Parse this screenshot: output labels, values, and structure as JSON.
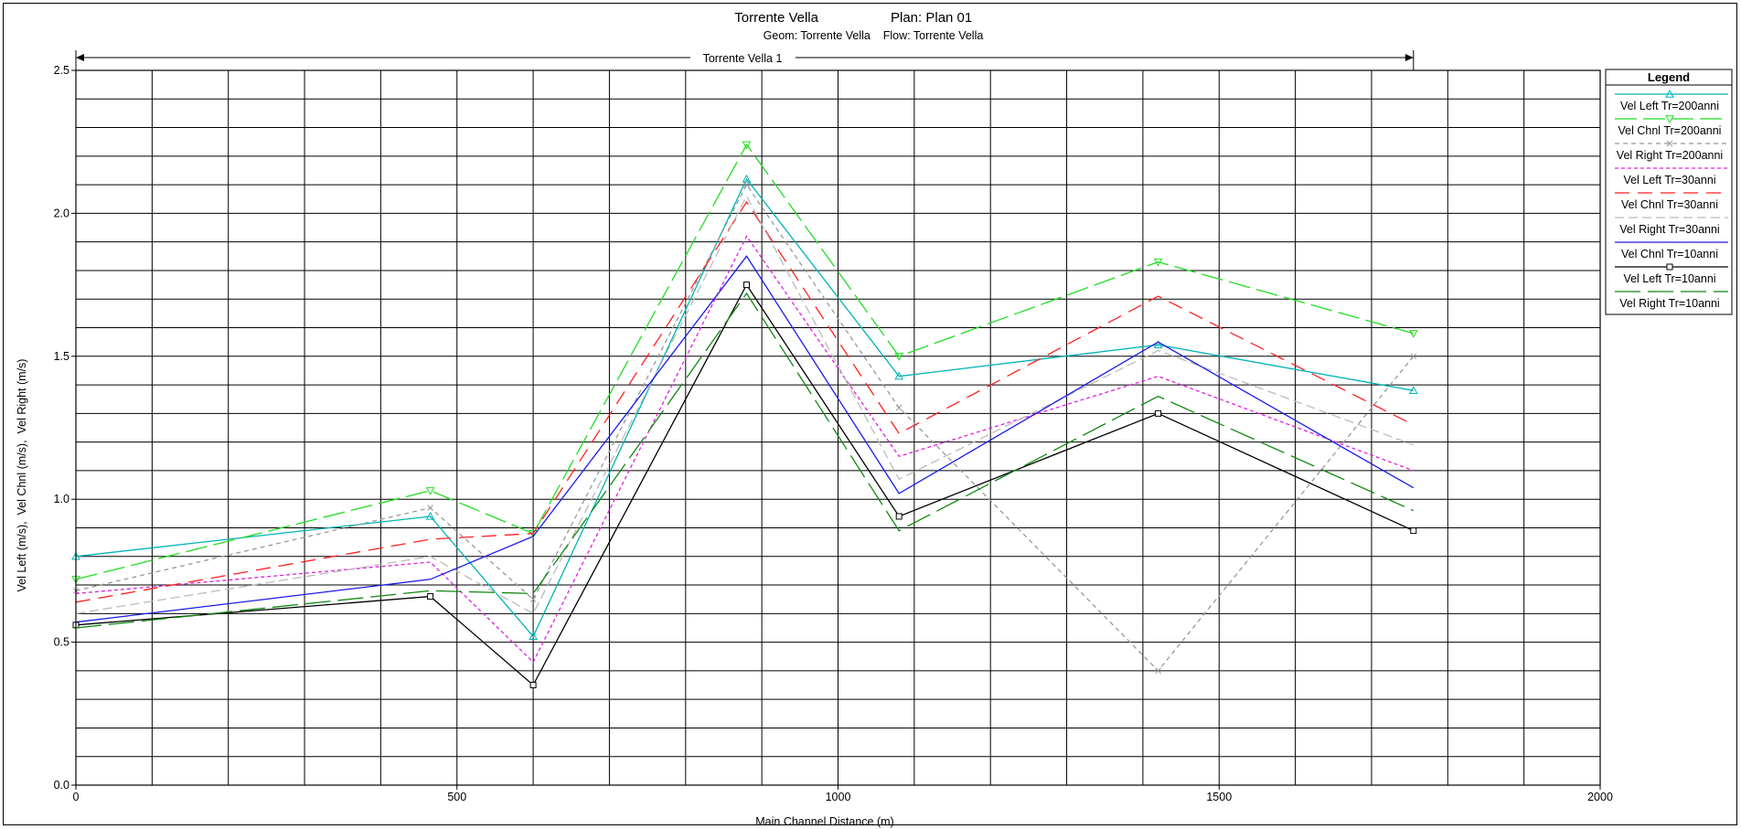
{
  "chart_data": {
    "type": "line",
    "title": "Torrente Vella",
    "plan_label": "Plan: Plan 01",
    "subtitle": "Geom: Torrente Vella    Flow: Torrente Vella",
    "reach_label": "Torrente Vella 1",
    "reach_range": [
      0,
      1755
    ],
    "xlabel": "Main Channel Distance (m)",
    "ylabel": "Vel Left (m/s),  Vel Chnl (m/s),  Vel Right (m/s)",
    "xlim": [
      0,
      2000
    ],
    "ylim": [
      0,
      2.5
    ],
    "x_ticks": [
      "0",
      "500",
      "1000",
      "1500",
      "2000"
    ],
    "y_ticks": [
      "0.0",
      "0.5",
      "1.0",
      "1.5",
      "2.0",
      "2.5"
    ],
    "x_grid_step": 100,
    "y_grid_step": 0.1,
    "grid": true,
    "legend_title": "Legend",
    "legend_position": "top-right",
    "x": [
      0,
      465,
      600,
      880,
      1080,
      1420,
      1755
    ],
    "series": [
      {
        "name": "Vel Left Tr=200anni",
        "color": "#00b4b4",
        "dash": "",
        "marker": "triangle-up",
        "values": [
          0.8,
          0.94,
          0.52,
          2.12,
          1.43,
          1.54,
          1.38
        ]
      },
      {
        "name": "Vel Chnl Tr=200anni",
        "color": "#22dd22",
        "dash": "24,7",
        "marker": "triangle-down",
        "values": [
          0.72,
          1.03,
          0.88,
          2.24,
          1.5,
          1.83,
          1.58
        ]
      },
      {
        "name": "Vel Right Tr=200anni",
        "color": "#999999",
        "dash": "5,4",
        "marker": "x",
        "values": [
          0.68,
          0.97,
          0.65,
          2.1,
          1.32,
          0.4,
          1.5
        ]
      },
      {
        "name": "Vel Left Tr=30anni",
        "color": "#e020e0",
        "dash": "4,3",
        "marker": "",
        "values": [
          0.67,
          0.78,
          0.43,
          1.92,
          1.15,
          1.43,
          1.1
        ]
      },
      {
        "name": "Vel Chnl Tr=30anni",
        "color": "#ff2020",
        "dash": "16,9",
        "marker": "",
        "values": [
          0.64,
          0.86,
          0.88,
          2.04,
          1.23,
          1.71,
          1.26
        ]
      },
      {
        "name": "Vel Right Tr=30anni",
        "color": "#bbbbbb",
        "dash": "10,5",
        "marker": "",
        "values": [
          0.6,
          0.8,
          0.6,
          2.06,
          1.07,
          1.52,
          1.19
        ]
      },
      {
        "name": "Vel Chnl Tr=10anni",
        "color": "#1a1aee",
        "dash": "",
        "marker": "",
        "values": [
          0.57,
          0.72,
          0.87,
          1.85,
          1.02,
          1.55,
          1.04
        ]
      },
      {
        "name": "Vel Left Tr=10anni",
        "color": "#000000",
        "dash": "",
        "marker": "square",
        "values": [
          0.56,
          0.66,
          0.35,
          1.75,
          0.94,
          1.3,
          0.89
        ]
      },
      {
        "name": "Vel Right Tr=10anni",
        "color": "#108810",
        "dash": "28,8",
        "marker": "",
        "values": [
          0.55,
          0.68,
          0.67,
          1.72,
          0.89,
          1.36,
          0.96
        ]
      }
    ]
  }
}
